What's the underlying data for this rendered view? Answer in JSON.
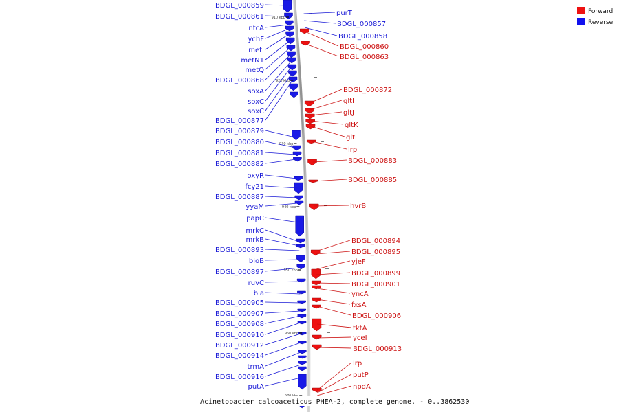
{
  "caption": "Acinetobacter calcoaceticus PHEA-2, complete genome. - 0..3862530",
  "legend": [
    {
      "label": "Forward",
      "color": "#ee1111"
    },
    {
      "label": "Reverse",
      "color": "#1111ee"
    }
  ],
  "kbp_marks": [
    "910 kbp",
    "920 kbp",
    "930 kbp",
    "940 kbp",
    "950 kbp",
    "960 kbp",
    "970 kbp"
  ],
  "reverse_labels": [
    "BDGL_000859",
    "BDGL_000861",
    "ntcA",
    "ychF",
    "metI",
    "metN1",
    "metQ",
    "BDGL_000868",
    "soxA",
    "soxC",
    "soxC",
    "BDGL_000877",
    "BDGL_000879",
    "BDGL_000880",
    "BDGL_000881",
    "BDGL_000882",
    "oxyR",
    "fcy21",
    "BDGL_000887",
    "yyaM",
    "papC",
    "mrkC",
    "mrkB",
    "BDGL_000893",
    "bioB",
    "BDGL_000897",
    "ruvC",
    "bla",
    "BDGL_000905",
    "BDGL_000907",
    "BDGL_000908",
    "BDGL_000910",
    "BDGL_000912",
    "BDGL_000914",
    "trmA",
    "BDGL_000916",
    "putA"
  ],
  "forward_labels": [
    "purT",
    "BDGL_000857",
    "BDGL_000858",
    "BDGL_000860",
    "BDGL_000863",
    "BDGL_000872",
    "gltI",
    "gltJ",
    "gltK",
    "gltL",
    "lrp",
    "BDGL_000883",
    "BDGL_000885",
    "hvrB",
    "BDGL_000894",
    "BDGL_000895",
    "yjeF",
    "BDGL_000899",
    "BDGL_000901",
    "yncA",
    "fxsA",
    "BDGL_000906",
    "tktA",
    "yceI",
    "BDGL_000913",
    "lrp",
    "putP",
    "npdA"
  ]
}
